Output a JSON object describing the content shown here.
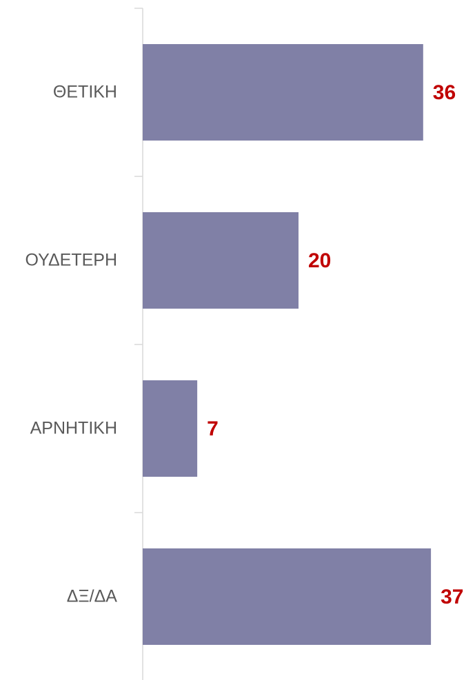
{
  "chart_data": {
    "type": "bar",
    "orientation": "horizontal",
    "categories": [
      "ΘΕΤΙΚΗ",
      "ΟΥΔΕΤΕΡΗ",
      "ΑΡΝΗΤΙΚΗ",
      "ΔΞ/ΔΑ"
    ],
    "values": [
      36,
      20,
      7,
      37
    ],
    "color": "#8080a6",
    "label_color": "#c00000"
  }
}
